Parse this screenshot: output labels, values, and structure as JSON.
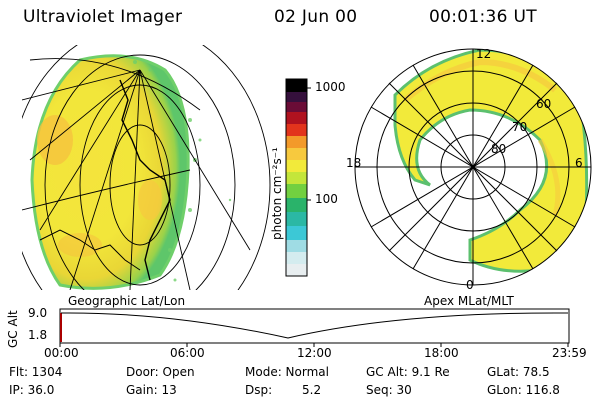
{
  "header": {
    "title": "Ultraviolet Imager",
    "date": "02 Jun 00",
    "time": "00:01:36 UT"
  },
  "colorbar": {
    "unit_label": "photon cm⁻²s⁻¹",
    "ticks": [
      "1000",
      "100"
    ]
  },
  "left_panel": {
    "caption": "Geographic Lat/Lon"
  },
  "right_panel": {
    "caption": "Apex MLat/MLT",
    "mlt_labels": {
      "top": "12",
      "left": "18",
      "right": "6",
      "bottom": "0"
    },
    "lat_labels": [
      "60",
      "70",
      "80"
    ]
  },
  "altitude_plot": {
    "ylabel": "GC Alt",
    "yticks": [
      "9.0",
      "1.8"
    ],
    "xticks": [
      "00:00",
      "06:00",
      "12:00",
      "18:00",
      "23:59"
    ]
  },
  "status": {
    "flt": "Flt: 1304",
    "ip": "IP: 36.0",
    "door": "Door: Open",
    "gain": "Gain: 13",
    "mode": "Mode: Normal",
    "dsp_label": "Dsp:",
    "dsp_value": "5.2",
    "gc_alt": "GC Alt: 9.1 Re",
    "seq": "Seq: 30",
    "glat": "GLat:  78.5",
    "glon": "GLon: 116.8"
  },
  "colors": {
    "colorbar_stops": [
      "#e8eef0",
      "#bfe7ea",
      "#3cc8d6",
      "#2ab36a",
      "#72d040",
      "#c4e63a",
      "#f2ea3a",
      "#f7c93e",
      "#f39a2a",
      "#ee5a1e",
      "#d8161c",
      "#8c0a2c",
      "#35103c",
      "#000000"
    ],
    "aurora_yellow": "#f2ea3a",
    "aurora_green": "#72d040"
  }
}
